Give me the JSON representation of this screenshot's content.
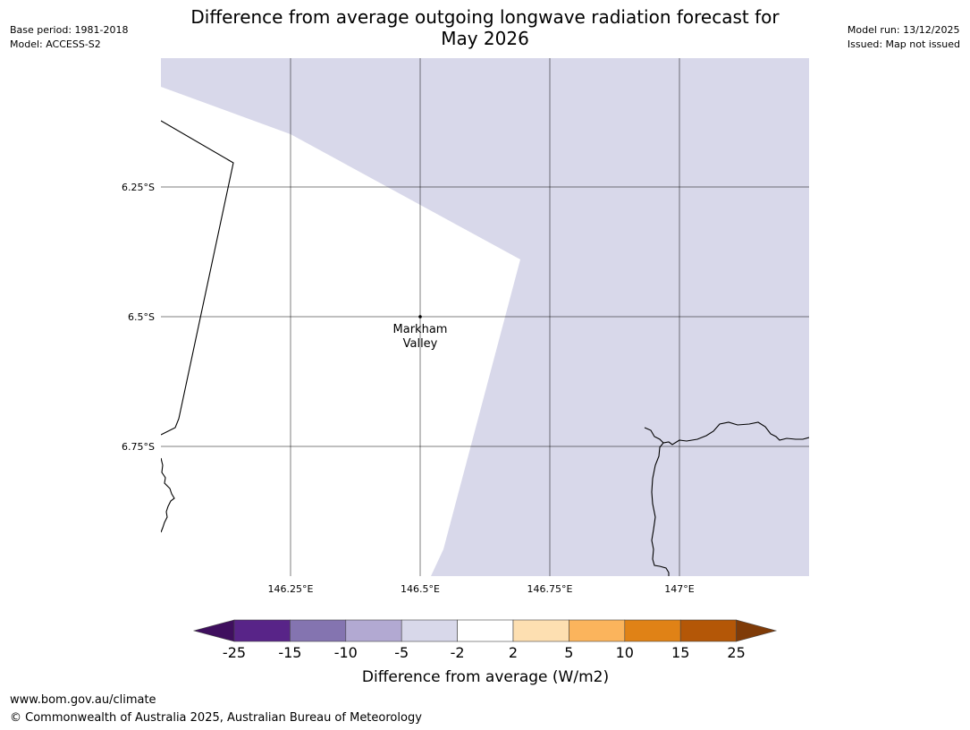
{
  "title_line1": "Difference from average outgoing longwave radiation forecast for",
  "title_line2": "May 2026",
  "meta_left": {
    "base_period": "Base period: 1981-2018",
    "model": "Model: ACCESS-S2"
  },
  "meta_right": {
    "model_run": "Model run: 13/12/2025",
    "issued": "Issued: Map not issued"
  },
  "map": {
    "lat_labels": [
      "6.25°S",
      "6.5°S",
      "6.75°S"
    ],
    "lon_labels": [
      "146.25°E",
      "146.5°E",
      "146.75°E",
      "147°E"
    ],
    "place": {
      "name_line1": "Markham",
      "name_line2": "Valley"
    },
    "region_color": "#d8d8ea"
  },
  "colorbar": {
    "title": "Difference from average (W/m2)",
    "tick_labels": [
      "-25",
      "-15",
      "-10",
      "-5",
      "-2",
      "2",
      "5",
      "10",
      "15",
      "25"
    ],
    "colors": [
      "#3f0f5e",
      "#582488",
      "#8474b0",
      "#b2a9d2",
      "#d8d8ea",
      "#ffffff",
      "#fddfb1",
      "#fbb45c",
      "#e08216",
      "#b45707",
      "#7f3b08"
    ]
  },
  "footer": {
    "url": "www.bom.gov.au/climate",
    "copyright": "© Commonwealth of Australia 2025, Australian Bureau of Meteorology"
  }
}
